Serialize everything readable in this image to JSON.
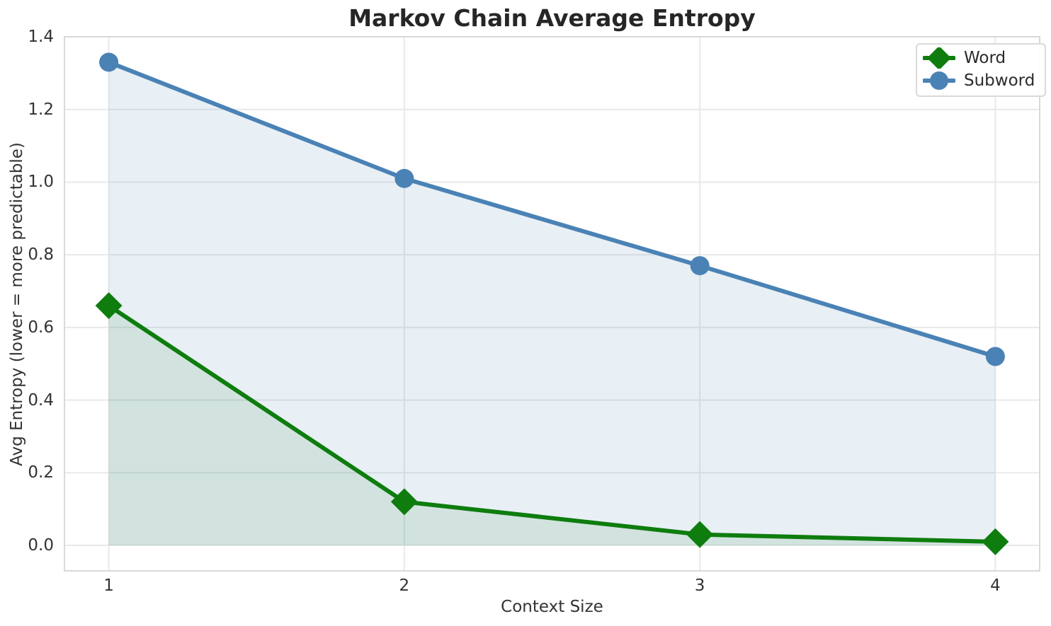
{
  "chart_data": {
    "type": "line",
    "title": "Markov Chain Average Entropy",
    "xlabel": "Context Size",
    "ylabel": "Avg Entropy (lower = more predictable)",
    "x": [
      1,
      2,
      3,
      4
    ],
    "series": [
      {
        "name": "Word",
        "values": [
          0.66,
          0.12,
          0.03,
          0.01
        ],
        "color": "#0e7d0e",
        "fill_color": "rgba(14,125,14,0.10)",
        "marker": "diamond",
        "fill_to_zero": true
      },
      {
        "name": "Subword",
        "values": [
          1.33,
          1.01,
          0.77,
          0.52
        ],
        "color": "#4a82b5",
        "fill_color": "rgba(74,130,181,0.13)",
        "marker": "circle",
        "fill_to_zero": true
      }
    ],
    "xticks": [
      "1",
      "2",
      "3",
      "4"
    ],
    "yticks": [
      "0.0",
      "0.2",
      "0.4",
      "0.6",
      "0.8",
      "1.0",
      "1.2",
      "1.4"
    ],
    "xlim": [
      0.85,
      4.15
    ],
    "ylim": [
      -0.07,
      1.4
    ],
    "grid": true,
    "legend_position": "upper right"
  },
  "style": {
    "background": "#ffffff",
    "grid_color": "#e9e9e9",
    "spine_color": "#d9d9d9",
    "title_color": "#262626",
    "text_color": "#333333",
    "legend_border": "#d9d9d9"
  }
}
